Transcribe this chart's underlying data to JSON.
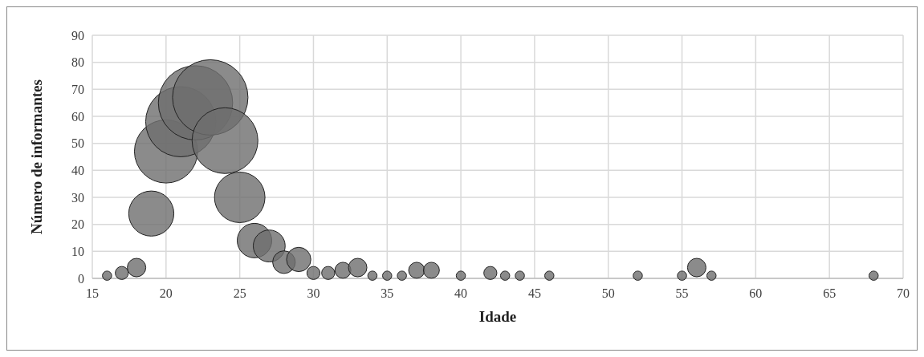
{
  "chart_data": {
    "type": "bubble",
    "xlabel": "Idade",
    "ylabel": "Número de informantes",
    "x": [
      16,
      17,
      18,
      19,
      20,
      21,
      22,
      23,
      24,
      25,
      26,
      27,
      28,
      29,
      30,
      31,
      32,
      33,
      34,
      35,
      36,
      37,
      38,
      40,
      42,
      43,
      44,
      46,
      52,
      55,
      56,
      57,
      68
    ],
    "values": [
      1,
      2,
      4,
      24,
      47,
      58,
      65,
      67,
      51,
      30,
      14,
      12,
      6,
      7,
      2,
      2,
      3,
      4,
      1,
      1,
      1,
      3,
      3,
      1,
      2,
      1,
      1,
      1,
      1,
      1,
      4,
      1,
      1
    ],
    "sizes": [
      0.015,
      0.03,
      0.06,
      0.358,
      0.701,
      0.866,
      0.97,
      1,
      0.761,
      0.448,
      0.209,
      0.179,
      0.09,
      0.104,
      0.03,
      0.03,
      0.045,
      0.06,
      0.015,
      0.015,
      0.015,
      0.045,
      0.045,
      0.015,
      0.03,
      0.015,
      0.015,
      0.015,
      0.015,
      0.015,
      0.06,
      0.015,
      0.015
    ],
    "color": "#6e6e6e",
    "xlim": [
      15,
      70
    ],
    "xticks": [
      15,
      20,
      25,
      30,
      35,
      40,
      45,
      50,
      55,
      60,
      65,
      70
    ],
    "ylim": [
      0,
      90
    ],
    "yticks": [
      0,
      10,
      20,
      30,
      40,
      50,
      60,
      70,
      80,
      90
    ],
    "grid": true
  }
}
